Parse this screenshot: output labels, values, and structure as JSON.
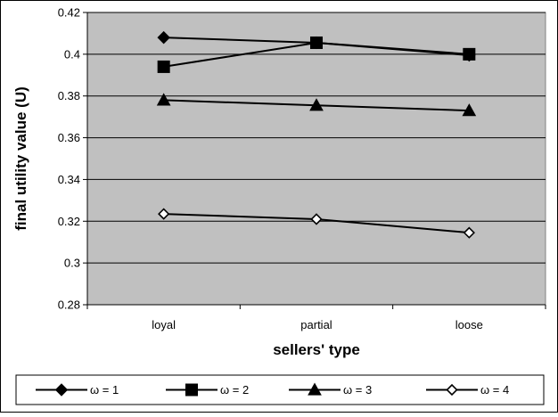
{
  "chart_data": {
    "type": "line",
    "title": "",
    "xlabel": "sellers' type",
    "ylabel": "final utility value (U)",
    "categories": [
      "loyal",
      "partial",
      "loose"
    ],
    "ylim": [
      0.28,
      0.42
    ],
    "yticks": [
      "0.28",
      "0.3",
      "0.32",
      "0.34",
      "0.36",
      "0.38",
      "0.4",
      "0.42"
    ],
    "ytick_values": [
      0.28,
      0.3,
      0.32,
      0.34,
      0.36,
      0.38,
      0.4,
      0.42
    ],
    "grid": true,
    "legend_position": "bottom",
    "plot_background": "#c0c0c0",
    "series": [
      {
        "name": "ω = 1",
        "marker": "diamond",
        "filled": true,
        "values": [
          0.408,
          0.4055,
          0.3995
        ]
      },
      {
        "name": "ω = 2",
        "marker": "square",
        "filled": true,
        "values": [
          0.394,
          0.4055,
          0.4
        ]
      },
      {
        "name": "ω = 3",
        "marker": "triangle",
        "filled": true,
        "values": [
          0.378,
          0.3755,
          0.373
        ]
      },
      {
        "name": "ω = 4",
        "marker": "diamond",
        "filled": false,
        "values": [
          0.3235,
          0.321,
          0.3145
        ]
      }
    ]
  }
}
